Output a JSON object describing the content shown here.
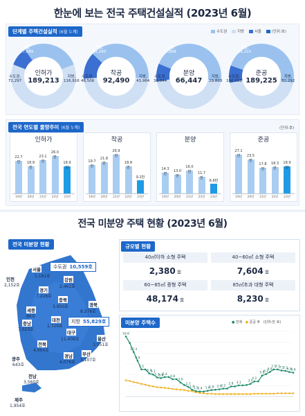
{
  "title_top": "한눈에 보는 전국 주택건설실적 (2023년 6월)",
  "stage_section": {
    "tag": "단계별 주택건설실적",
    "tag_sub": "(6월 누계)",
    "legend": [
      {
        "label": "수도권",
        "color": "#9bc2ef"
      },
      {
        "label": "지방",
        "color": "#cfe0f5"
      },
      {
        "label": "서울",
        "color": "#3b6fd1"
      },
      {
        "label": "(단위:호)",
        "color": ""
      }
    ],
    "donuts": [
      {
        "label": "인허가",
        "total": "189,213",
        "seoul_label": "서울,",
        "seoul": "17,589",
        "metro_label": "수도권,",
        "metro": "72,297",
        "local_label": "지방,",
        "local": "116,916",
        "seoul_v": 17589,
        "metro_v": 72297,
        "local_v": 116916
      },
      {
        "label": "착공",
        "total": "92,490",
        "seoul_label": "서울,",
        "seoul": "12,283",
        "metro_label": "수도권,",
        "metro": "48,506",
        "local_label": "지방,",
        "local": "43,984",
        "seoul_v": 12283,
        "metro_v": 48506,
        "local_v": 43984
      },
      {
        "label": "분양",
        "total": "66,447",
        "seoul_label": "서울,",
        "seoul": "5,868",
        "metro_label": "수도권,",
        "metro": "36,644",
        "local_label": "지방,",
        "local": "29,803",
        "seoul_v": 5868,
        "metro_v": 36644,
        "local_v": 29803
      },
      {
        "label": "준공",
        "total": "189,225",
        "seoul_label": "서울,",
        "seoul": "16,215",
        "metro_label": "수도권,",
        "metro": "106,933",
        "local_label": "지방,",
        "local": "82,292",
        "seoul_v": 16215,
        "metro_v": 106933,
        "local_v": 82292
      }
    ]
  },
  "yearly_section": {
    "tag": "전국 연도별 물량추이",
    "tag_sub": "(6월 누계)",
    "unit": "(단위:호)",
    "years": [
      "19년",
      "20년",
      "21년",
      "22년",
      "23년"
    ],
    "value_unit": "만",
    "charts": [
      {
        "label": "인허가",
        "values": [
          22.7,
          18.9,
          23.1,
          26.0,
          18.9
        ]
      },
      {
        "label": "착공",
        "values": [
          19.7,
          21.8,
          26.9,
          18.8,
          9.2
        ]
      },
      {
        "label": "분양",
        "values": [
          14.3,
          13.0,
          16.0,
          11.7,
          6.6
        ]
      },
      {
        "label": "준공",
        "values": [
          27.1,
          23.5,
          17.8,
          18.3,
          18.9
        ]
      }
    ]
  },
  "title_bottom": "전국 미분양 주택 현황 (2023년 6월)",
  "unsold_map": {
    "tag": "전국 미분양 현황",
    "capital_callout": {
      "label": "수도권",
      "value": "10,559호"
    },
    "local_callout": {
      "label": "지방",
      "value": "55,829호"
    },
    "regions": [
      {
        "name": "서울",
        "value": "1,181호"
      },
      {
        "name": "인천",
        "value": "2,152호"
      },
      {
        "name": "강원",
        "value": "2,461호"
      },
      {
        "name": "경기",
        "value": "7,226호"
      },
      {
        "name": "충북",
        "value": "3,950호"
      },
      {
        "name": "세종",
        "value": "86호"
      },
      {
        "name": "경북",
        "value": "8,276호"
      },
      {
        "name": "충남",
        "value": "7,023호"
      },
      {
        "name": "대전",
        "value": "1,729호"
      },
      {
        "name": "대구",
        "value": "11,409호"
      },
      {
        "name": "전북",
        "value": "4,004호"
      },
      {
        "name": "울산",
        "value": "3,551호"
      },
      {
        "name": "경남",
        "value": "4,076호"
      },
      {
        "name": "부산",
        "value": "3,107호"
      },
      {
        "name": "광주",
        "value": "643호"
      },
      {
        "name": "전남",
        "value": "3,560호"
      },
      {
        "name": "제주",
        "value": "1,954호"
      }
    ]
  },
  "size_section": {
    "tag": "규모별 현황",
    "unit": "호",
    "cells": [
      {
        "header": "40㎡이하 소형 주택",
        "value": "2,380"
      },
      {
        "header": "40~60㎡ 소형 주택",
        "value": "7,604"
      },
      {
        "header": "60~85㎡ 중형 주택",
        "value": "48,174"
      },
      {
        "header": "85㎡초과 대형 주택",
        "value": "8,230"
      }
    ]
  },
  "trend_section": {
    "tag": "미분양 주택수",
    "legend": {
      "total": "전체",
      "completed": "준공 후",
      "unit": "(단위:만 호)"
    }
  },
  "colors": {
    "primary": "#1d67c9",
    "capital": "#9bc2ef",
    "local": "#cfe0f5",
    "seoul": "#3b6fd1",
    "bar": "#a9cdf2",
    "bar_last": "#1e9be5",
    "total_line": "#1a8a6a",
    "completed_line": "#f0b429"
  },
  "chart_data": [
    {
      "type": "pie",
      "title": "단계별 주택건설실적",
      "charts": [
        {
          "label": "인허가",
          "total": 189213,
          "slices": [
            {
              "name": "수도권",
              "value": 72297
            },
            {
              "name": "지방",
              "value": 116916
            },
            {
              "name": "서울",
              "value": 17589
            }
          ]
        },
        {
          "label": "착공",
          "total": 92490,
          "slices": [
            {
              "name": "수도권",
              "value": 48506
            },
            {
              "name": "지방",
              "value": 43984
            },
            {
              "name": "서울",
              "value": 12283
            }
          ]
        },
        {
          "label": "분양",
          "total": 66447,
          "slices": [
            {
              "name": "수도권",
              "value": 36644
            },
            {
              "name": "지방",
              "value": 29803
            },
            {
              "name": "서울",
              "value": 5868
            }
          ]
        },
        {
          "label": "준공",
          "total": 189225,
          "slices": [
            {
              "name": "수도권",
              "value": 106933
            },
            {
              "name": "지방",
              "value": 82292
            },
            {
              "name": "서울",
              "value": 16215
            }
          ]
        }
      ]
    },
    {
      "type": "bar",
      "title": "전국 연도별 물량추이",
      "categories": [
        "19년",
        "20년",
        "21년",
        "22년",
        "23년"
      ],
      "series": [
        {
          "name": "인허가",
          "values": [
            22.7,
            18.9,
            23.1,
            26.0,
            18.9
          ]
        },
        {
          "name": "착공",
          "values": [
            19.7,
            21.8,
            26.9,
            18.8,
            9.2
          ]
        },
        {
          "name": "분양",
          "values": [
            14.3,
            13.0,
            16.0,
            11.7,
            6.6
          ]
        },
        {
          "name": "준공",
          "values": [
            27.1,
            23.5,
            17.8,
            18.3,
            18.9
          ]
        }
      ]
    },
    {
      "type": "line",
      "title": "미분양 주택수",
      "ylabel": "(단위:만 호)",
      "series": [
        {
          "name": "전체",
          "values": [
            16.6,
            14.8,
            12.3,
            9.9,
            7.5,
            7.5,
            6.4,
            6.1,
            5.3,
            5.1,
            5.4,
            5.4,
            4.8,
            4.8,
            3.9,
            3.2,
            2.7,
            1.9,
            1.5,
            1.4,
            1.4,
            1.6,
            1.8,
            1.9,
            2.0,
            2.2,
            2.2,
            2.8,
            2.8,
            3.1,
            3.1,
            3.2,
            3.5,
            4.2,
            4.2,
            5.8,
            6.2,
            6.8,
            7.5,
            7.5,
            7.2,
            7.1,
            6.8,
            6.6
          ]
        },
        {
          "name": "준공 후",
          "values": [
            4.5,
            4.3,
            4.0,
            3.8,
            3.5,
            3.3,
            3.0,
            2.8,
            2.6,
            2.5,
            2.4,
            2.3,
            2.1,
            2.0,
            1.9,
            1.8,
            1.6,
            1.5,
            1.2,
            1.0,
            0.9,
            0.8,
            0.8,
            0.7,
            0.7,
            0.7,
            0.7,
            0.7,
            0.7,
            0.7,
            0.7,
            0.7,
            0.7,
            0.8,
            0.8,
            0.8,
            0.8,
            0.8,
            0.8,
            0.9,
            0.9,
            0.9,
            0.9,
            0.9
          ]
        }
      ],
      "data_labels": [
        "16.6",
        "12.3",
        "9.9",
        "7.5",
        "6.1",
        "5.3",
        "6.4",
        "5.9",
        "5.1",
        "5.4",
        "4.8",
        "3.9",
        "2.7",
        "1.9",
        "1.5",
        "1.4",
        "1.6",
        "1.8",
        "2.0",
        "2.2",
        "2.8",
        "3.1",
        "3.5",
        "4.2",
        "5.8",
        "6.2",
        "6.8",
        "7.5",
        "7.5",
        "7.2",
        "7.1",
        "6.8",
        "6.6"
      ]
    }
  ]
}
